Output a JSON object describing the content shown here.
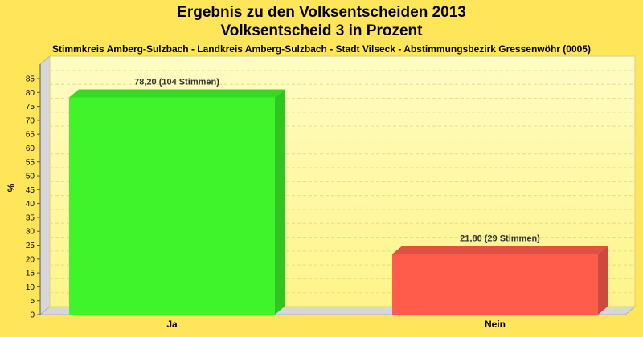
{
  "chart_data": {
    "type": "bar",
    "title": "Ergebnis zu den Volksentscheiden 2013",
    "subtitle": "Volksentscheid 3 in Prozent",
    "caption": "Stimmkreis Amberg-Sulzbach - Landkreis Amberg-Sulzbach - Stadt Vilseck - Abstimmungsbezirk Gressenwöhr (0005)",
    "ylabel": "%",
    "xlabel": "",
    "ylim": [
      0,
      85
    ],
    "yticks": [
      0,
      5,
      10,
      15,
      20,
      25,
      30,
      35,
      40,
      45,
      50,
      55,
      60,
      65,
      70,
      75,
      80,
      85
    ],
    "grid": true,
    "categories": [
      "Ja",
      "Nein"
    ],
    "values": [
      78.2,
      21.8
    ],
    "data_labels": [
      "78,20 (104 Stimmen)",
      "21,80 (29 Stimmen)"
    ],
    "colors": {
      "ja_front": "#3ff42a",
      "ja_side": "#32c421",
      "ja_top": "#37d825",
      "nein_front": "#ff5c4c",
      "nein_side": "#cc4a3d",
      "nein_top": "#de5243",
      "background": "#ffe55a",
      "plot": "#fffaa6",
      "grid": "#e6dc86"
    }
  }
}
